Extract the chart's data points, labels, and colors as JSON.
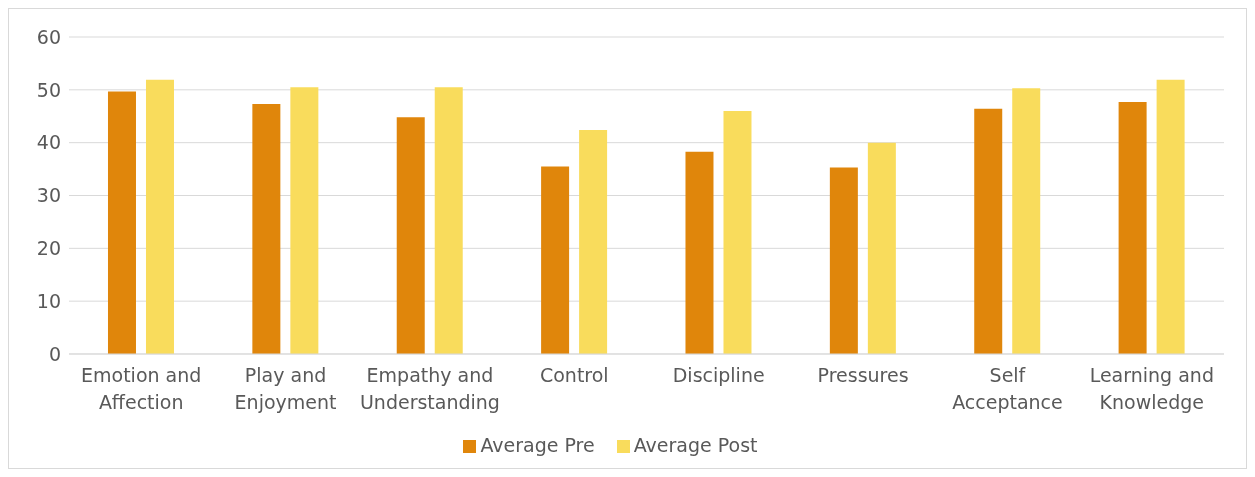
{
  "chart_data": {
    "type": "bar",
    "categories": [
      "Emotion and Affection",
      "Play and Enjoyment",
      "Empathy and Understanding",
      "Control",
      "Discipline",
      "Pressures",
      "Self Acceptance",
      "Learning and Knowledge"
    ],
    "series": [
      {
        "name": "Average Pre",
        "color": "#e0860b",
        "values": [
          49.7,
          47.3,
          44.8,
          35.5,
          38.3,
          35.3,
          46.4,
          47.7
        ]
      },
      {
        "name": "Average Post",
        "color": "#f9dc5c",
        "values": [
          51.9,
          50.5,
          50.5,
          42.4,
          46.0,
          40.0,
          50.3,
          51.9
        ]
      }
    ],
    "ylim": [
      0,
      60
    ],
    "yticks": [
      0,
      10,
      20,
      30,
      40,
      50,
      60
    ],
    "grid": "y",
    "legend": "bottom"
  }
}
